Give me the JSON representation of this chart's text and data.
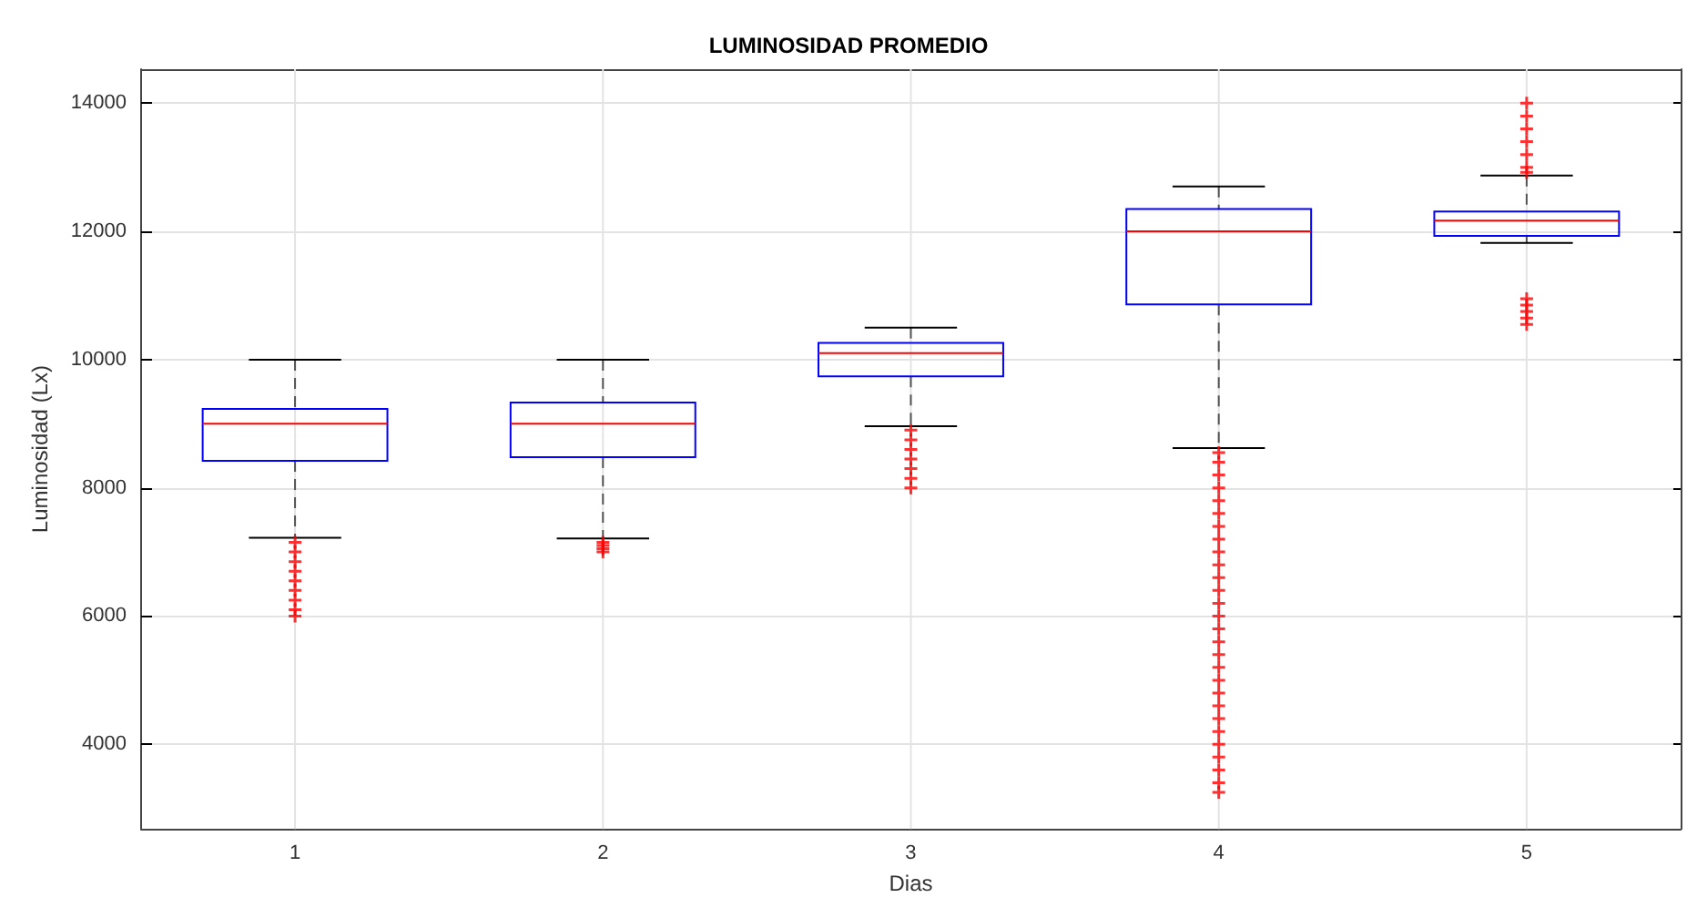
{
  "chart_data": {
    "type": "box",
    "title": "LUMINOSIDAD PROMEDIO",
    "xlabel": "Dias",
    "ylabel": "Luminosidad (Lx)",
    "categories": [
      "1",
      "2",
      "3",
      "4",
      "5"
    ],
    "ylim": [
      2680,
      14530
    ],
    "yticks": [
      4000,
      6000,
      8000,
      10000,
      12000,
      14000
    ],
    "grid": true,
    "series": [
      {
        "color": "#0000ff",
        "boxes": [
          {
            "low": 7220,
            "q1": 8420,
            "median": 9000,
            "q3": 9230,
            "high": 10000
          },
          {
            "low": 7210,
            "q1": 8480,
            "median": 9000,
            "q3": 9330,
            "high": 10000
          },
          {
            "low": 8960,
            "q1": 9740,
            "median": 10100,
            "q3": 10260,
            "high": 10500
          },
          {
            "low": 8620,
            "q1": 10860,
            "median": 12000,
            "q3": 12350,
            "high": 12700
          },
          {
            "low": 11820,
            "q1": 11930,
            "median": 12170,
            "q3": 12310,
            "high": 12870
          }
        ]
      },
      {
        "type": "scatter",
        "color": "#ff0000",
        "marker": "cross",
        "x": [
          "1",
          "1",
          "1",
          "1",
          "1",
          "1",
          "1",
          "1",
          "1",
          "2",
          "2",
          "2",
          "2",
          "3",
          "3",
          "3",
          "3",
          "3",
          "3",
          "3",
          "4",
          "4",
          "4",
          "4",
          "4",
          "4",
          "4",
          "4",
          "4",
          "4",
          "4",
          "4",
          "4",
          "4",
          "4",
          "4",
          "4",
          "4",
          "4",
          "4",
          "4",
          "4",
          "4",
          "4",
          "4",
          "4",
          "4",
          "4",
          "5",
          "5",
          "5",
          "5",
          "5",
          "5",
          "5",
          "5",
          "5",
          "5",
          "5",
          "5"
        ],
        "values": [
          6000,
          6100,
          6250,
          6400,
          6550,
          6700,
          6850,
          7000,
          7150,
          7000,
          7050,
          7100,
          7150,
          8000,
          8150,
          8300,
          8450,
          8600,
          8750,
          8900,
          3250,
          3400,
          3600,
          3800,
          4000,
          4200,
          4400,
          4600,
          4800,
          5000,
          5200,
          5400,
          5600,
          5800,
          6000,
          6200,
          6400,
          6600,
          6800,
          7000,
          7200,
          7400,
          7600,
          7800,
          8000,
          8200,
          8400,
          8550,
          10550,
          10650,
          10750,
          10850,
          10950,
          12920,
          13000,
          13200,
          13400,
          13600,
          13800,
          14000
        ]
      }
    ]
  }
}
